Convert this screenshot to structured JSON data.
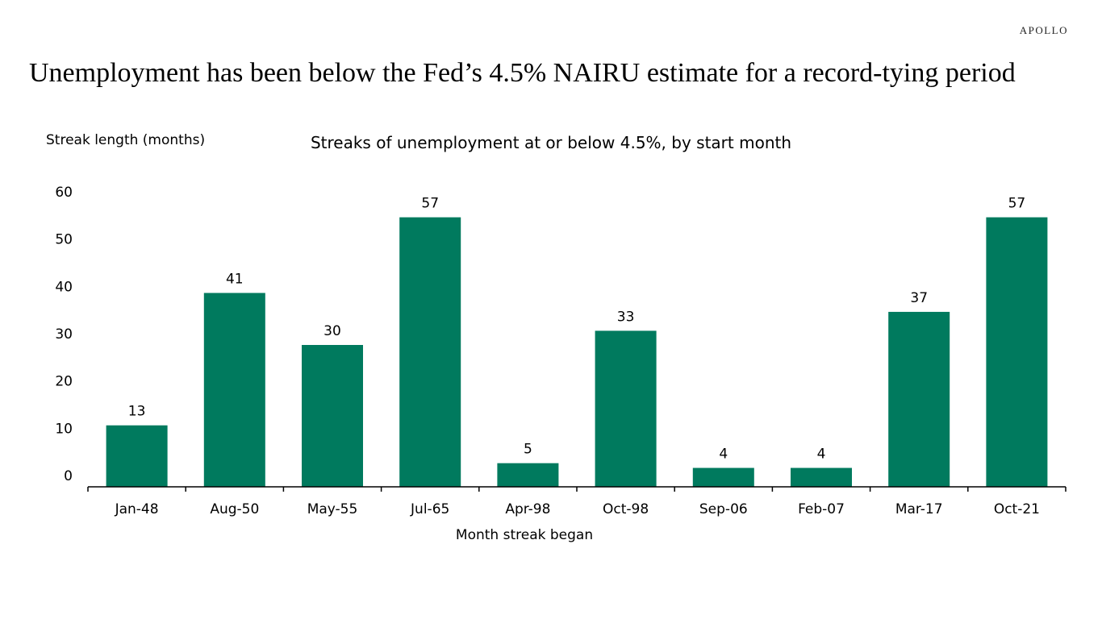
{
  "brand": "APOLLO",
  "headline": "Unemployment has been below the Fed’s 4.5% NAIRU estimate for a record-tying period",
  "colors": {
    "bar": "#007a5e",
    "axis": "#000000",
    "text": "#000000"
  },
  "chart_data": {
    "type": "bar",
    "title": "Streaks of unemployment at or below 4.5%, by start month",
    "ylabel": "Streak length (months)",
    "xlabel": "Month streak began",
    "categories": [
      "Jan-48",
      "Aug-50",
      "May-55",
      "Jul-65",
      "Apr-98",
      "Oct-98",
      "Sep-06",
      "Feb-07",
      "Mar-17",
      "Oct-21"
    ],
    "values": [
      13,
      41,
      30,
      57,
      5,
      33,
      4,
      4,
      37,
      57
    ],
    "ylim": [
      0,
      60
    ],
    "yticks": [
      0,
      10,
      20,
      30,
      40,
      50,
      60
    ],
    "data_labels": true,
    "grid": false,
    "legend": "none"
  }
}
